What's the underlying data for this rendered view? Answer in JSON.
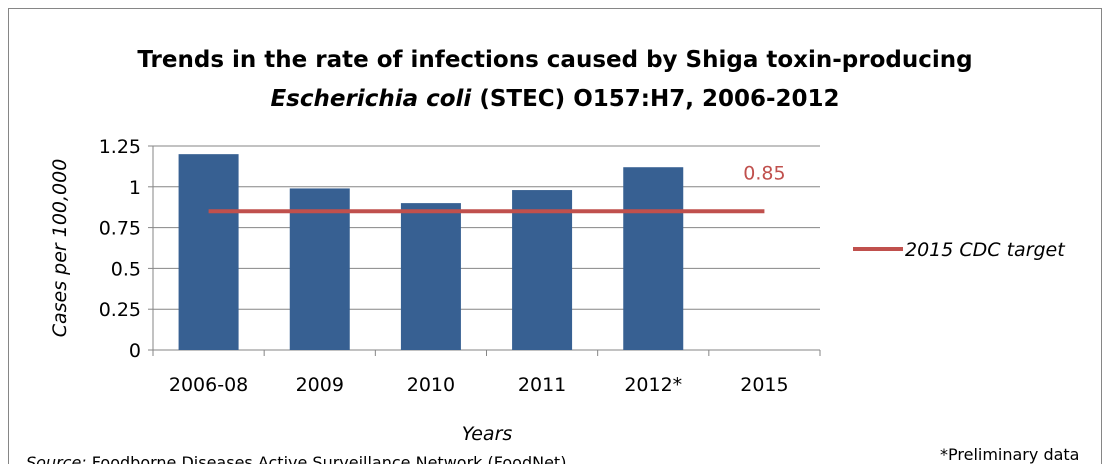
{
  "chart_data": {
    "type": "bar",
    "title": [
      "Trends in the rate of infections caused by Shiga toxin-producing",
      "Escherichia coli",
      "(STEC) O157:H7, 2006-2012"
    ],
    "y_label": "Cases per 100,000",
    "x_label": "Years",
    "source": [
      "Source:",
      "Foodborne Diseases Active Surveillance Network (FoodNet)"
    ],
    "note": "*Preliminary data",
    "categories": [
      "2006-08",
      "2009",
      "2010",
      "2011",
      "2012*",
      "2015"
    ],
    "series": [
      {
        "type": "bar",
        "color": "#376092",
        "values": [
          1.2,
          0.99,
          0.9,
          0.98,
          1.12,
          null
        ]
      },
      {
        "name": "2015 CDC target",
        "type": "line",
        "color": "#c0504d",
        "values": [
          0.85,
          0.85,
          0.85,
          0.85,
          0.85,
          0.85
        ],
        "data_label_index": 5
      }
    ],
    "ylim": [
      0,
      1.25
    ],
    "yticks": [
      0,
      0.25,
      0.5,
      0.75,
      1,
      1.25
    ],
    "grid": true,
    "legend": "right"
  }
}
